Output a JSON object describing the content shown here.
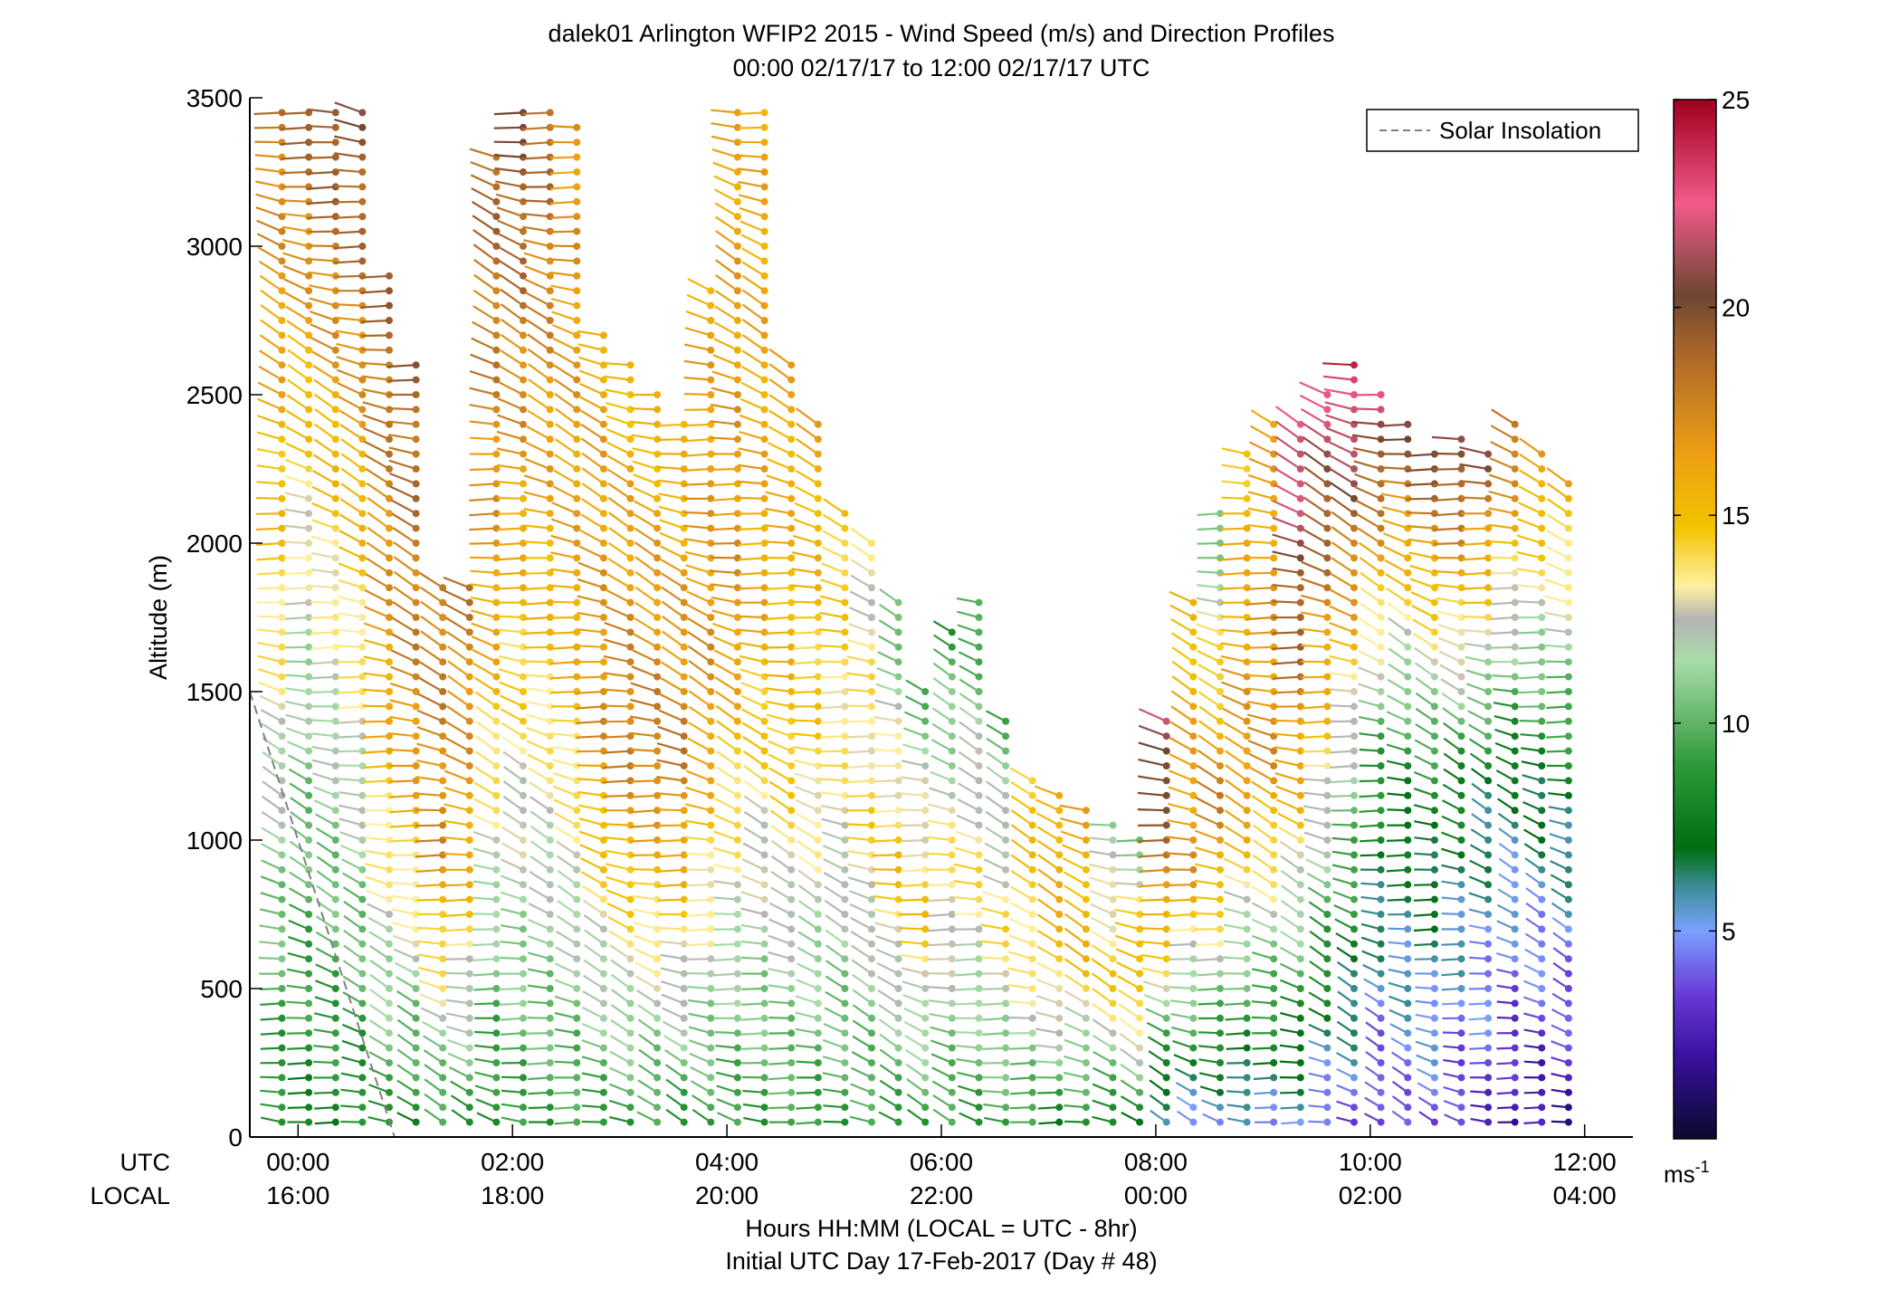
{
  "chart_data": {
    "type": "barb-profile",
    "title": "dalek01 Arlington WFIP2 2015 - Wind Speed (m/s) and Direction Profiles",
    "subtitle": "00:00 02/17/17 to 12:00 02/17/17  UTC",
    "ylabel": "Altitude (m)",
    "ylim": [
      0,
      3500
    ],
    "yticks": [
      0,
      500,
      1000,
      1500,
      2000,
      2500,
      3000,
      3500
    ],
    "ytick_labels": [
      "0",
      "500",
      "1000",
      "1500",
      "2000",
      "2500",
      "3000",
      "3500"
    ],
    "xlim_hours": [
      -0.45,
      12.45
    ],
    "xticks_hours": [
      0,
      2,
      4,
      6,
      8,
      10,
      12
    ],
    "utc_label": "UTC",
    "local_label": "LOCAL",
    "utc_tick_labels": [
      "00:00",
      "02:00",
      "04:00",
      "06:00",
      "08:00",
      "10:00",
      "12:00"
    ],
    "local_tick_labels": [
      "16:00",
      "18:00",
      "20:00",
      "22:00",
      "00:00",
      "02:00",
      "04:00"
    ],
    "xlabel": "Hours HH:MM  (LOCAL = UTC - 8hr)",
    "xlabel2": "Initial UTC Day 17-Feb-2017 (Day # 48)",
    "legend": {
      "label": "Solar Insolation",
      "position": "top-right",
      "style": "dashed",
      "color": "#808080"
    },
    "solar_insolation": {
      "x_hours": [
        -0.45,
        0.9
      ],
      "y": [
        1500,
        0
      ]
    },
    "colorbar": {
      "range": [
        0,
        25
      ],
      "ticks": [
        5,
        10,
        15,
        20,
        25
      ],
      "tick_labels": [
        "5",
        "10",
        "15",
        "20",
        "25"
      ],
      "unit_base": "ms",
      "unit_exp": "-1",
      "stops": [
        {
          "v": 0,
          "c": "#0a0a2e"
        },
        {
          "v": 2,
          "c": "#3a10a0"
        },
        {
          "v": 3.5,
          "c": "#6a3cd8"
        },
        {
          "v": 5,
          "c": "#7aa0ff"
        },
        {
          "v": 6,
          "c": "#3f8f9f"
        },
        {
          "v": 7,
          "c": "#006e12"
        },
        {
          "v": 9,
          "c": "#2e9a3a"
        },
        {
          "v": 11.5,
          "c": "#a8dca8"
        },
        {
          "v": 12.5,
          "c": "#b4b4b4"
        },
        {
          "v": 13.3,
          "c": "#fff0a0"
        },
        {
          "v": 14.7,
          "c": "#f2c300"
        },
        {
          "v": 16.5,
          "c": "#ec9f13"
        },
        {
          "v": 19,
          "c": "#a8642c"
        },
        {
          "v": 20.3,
          "c": "#6e4632"
        },
        {
          "v": 22.5,
          "c": "#f25a8a"
        },
        {
          "v": 25,
          "c": "#a0001e"
        }
      ]
    },
    "barb_columns": [
      {
        "t": -0.15,
        "h0": 50,
        "h1": 3450,
        "v": [
          8,
          14,
          18
        ]
      },
      {
        "t": 0.1,
        "h0": 50,
        "h1": 3450,
        "v": [
          8,
          12,
          19
        ]
      },
      {
        "t": 0.35,
        "h0": 50,
        "h1": 3450,
        "v": [
          8,
          13,
          20
        ]
      },
      {
        "t": 0.6,
        "h0": 50,
        "h1": 3450,
        "v": [
          8,
          14,
          20
        ]
      },
      {
        "t": 0.85,
        "h0": 50,
        "h1": 2900,
        "v": [
          9,
          16,
          19
        ]
      },
      {
        "t": 1.1,
        "h0": 50,
        "h1": 2600,
        "v": [
          8,
          17,
          19
        ]
      },
      {
        "t": 1.35,
        "h0": 50,
        "h1": 1850,
        "v": [
          9,
          17,
          18
        ]
      },
      {
        "t": 1.6,
        "h0": 50,
        "h1": 1850,
        "v": [
          9,
          16,
          18
        ]
      },
      {
        "t": 1.85,
        "h0": 50,
        "h1": 3300,
        "v": [
          8,
          16,
          19
        ]
      },
      {
        "t": 2.1,
        "h0": 50,
        "h1": 3450,
        "v": [
          9,
          15,
          20
        ]
      },
      {
        "t": 2.35,
        "h0": 50,
        "h1": 3450,
        "v": [
          9,
          15,
          19
        ]
      },
      {
        "t": 2.6,
        "h0": 50,
        "h1": 3400,
        "v": [
          9,
          16,
          17
        ]
      },
      {
        "t": 2.85,
        "h0": 50,
        "h1": 2700,
        "v": [
          9,
          17,
          16
        ]
      },
      {
        "t": 3.1,
        "h0": 50,
        "h1": 2600,
        "v": [
          9,
          18,
          15
        ]
      },
      {
        "t": 3.35,
        "h0": 50,
        "h1": 2500,
        "v": [
          9,
          18,
          15
        ]
      },
      {
        "t": 3.6,
        "h0": 50,
        "h1": 2400,
        "v": [
          9,
          18,
          15
        ]
      },
      {
        "t": 3.85,
        "h0": 50,
        "h1": 2850,
        "v": [
          9,
          17,
          16
        ]
      },
      {
        "t": 4.1,
        "h0": 50,
        "h1": 3450,
        "v": [
          9,
          17,
          16
        ]
      },
      {
        "t": 4.35,
        "h0": 50,
        "h1": 3450,
        "v": [
          9,
          16,
          16
        ]
      },
      {
        "t": 4.6,
        "h0": 50,
        "h1": 2600,
        "v": [
          9,
          15,
          16
        ]
      },
      {
        "t": 4.85,
        "h0": 50,
        "h1": 2400,
        "v": [
          9,
          14,
          16
        ]
      },
      {
        "t": 5.1,
        "h0": 50,
        "h1": 2100,
        "v": [
          9,
          13,
          15
        ]
      },
      {
        "t": 5.35,
        "h0": 50,
        "h1": 2000,
        "v": [
          9,
          14,
          13
        ]
      },
      {
        "t": 5.6,
        "h0": 50,
        "h1": 1800,
        "v": [
          9,
          15,
          10
        ]
      },
      {
        "t": 5.85,
        "h0": 50,
        "h1": 1500,
        "v": [
          9,
          15,
          10
        ]
      },
      {
        "t": 6.1,
        "h0": 50,
        "h1": 1700,
        "v": [
          9,
          14,
          9
        ]
      },
      {
        "t": 6.35,
        "h0": 50,
        "h1": 1800,
        "v": [
          9,
          14,
          9
        ]
      },
      {
        "t": 6.6,
        "h0": 50,
        "h1": 1400,
        "v": [
          9,
          14,
          10
        ]
      },
      {
        "t": 6.85,
        "h0": 50,
        "h1": 1200,
        "v": [
          9,
          14,
          15
        ]
      },
      {
        "t": 7.1,
        "h0": 50,
        "h1": 1150,
        "v": [
          8,
          15,
          16
        ]
      },
      {
        "t": 7.35,
        "h0": 50,
        "h1": 1100,
        "v": [
          8,
          15,
          16
        ]
      },
      {
        "t": 7.6,
        "h0": 50,
        "h1": 1050,
        "v": [
          8,
          15,
          11
        ]
      },
      {
        "t": 7.85,
        "h0": 50,
        "h1": 1000,
        "v": [
          8,
          16,
          11
        ]
      },
      {
        "t": 8.1,
        "h0": 50,
        "h1": 1400,
        "v": [
          5,
          16,
          22
        ]
      },
      {
        "t": 8.35,
        "h0": 50,
        "h1": 1800,
        "v": [
          5,
          17,
          15
        ]
      },
      {
        "t": 8.6,
        "h0": 50,
        "h1": 2100,
        "v": [
          5,
          18,
          10
        ]
      },
      {
        "t": 8.85,
        "h0": 50,
        "h1": 2300,
        "v": [
          5,
          17,
          15
        ]
      },
      {
        "t": 9.1,
        "h0": 50,
        "h1": 2400,
        "v": [
          5,
          17,
          16
        ]
      },
      {
        "t": 9.35,
        "h0": 50,
        "h1": 2400,
        "v": [
          5,
          16,
          23
        ]
      },
      {
        "t": 9.6,
        "h0": 50,
        "h1": 2500,
        "v": [
          4,
          14,
          22
        ]
      },
      {
        "t": 9.85,
        "h0": 50,
        "h1": 2600,
        "v": [
          4,
          12,
          24
        ]
      },
      {
        "t": 10.1,
        "h0": 50,
        "h1": 2500,
        "v": [
          3,
          9,
          22
        ]
      },
      {
        "t": 10.35,
        "h0": 50,
        "h1": 2400,
        "v": [
          4,
          8,
          20
        ]
      },
      {
        "t": 10.6,
        "h0": 50,
        "h1": 2300,
        "v": [
          4,
          8,
          20
        ]
      },
      {
        "t": 10.85,
        "h0": 50,
        "h1": 2350,
        "v": [
          3,
          8,
          21
        ]
      },
      {
        "t": 11.1,
        "h0": 50,
        "h1": 2300,
        "v": [
          3,
          7,
          20
        ]
      },
      {
        "t": 11.35,
        "h0": 50,
        "h1": 2400,
        "v": [
          2,
          7,
          19
        ]
      },
      {
        "t": 11.6,
        "h0": 50,
        "h1": 2300,
        "v": [
          2,
          7,
          17
        ]
      },
      {
        "t": 11.85,
        "h0": 50,
        "h1": 2200,
        "v": [
          2,
          7,
          16
        ]
      }
    ]
  }
}
